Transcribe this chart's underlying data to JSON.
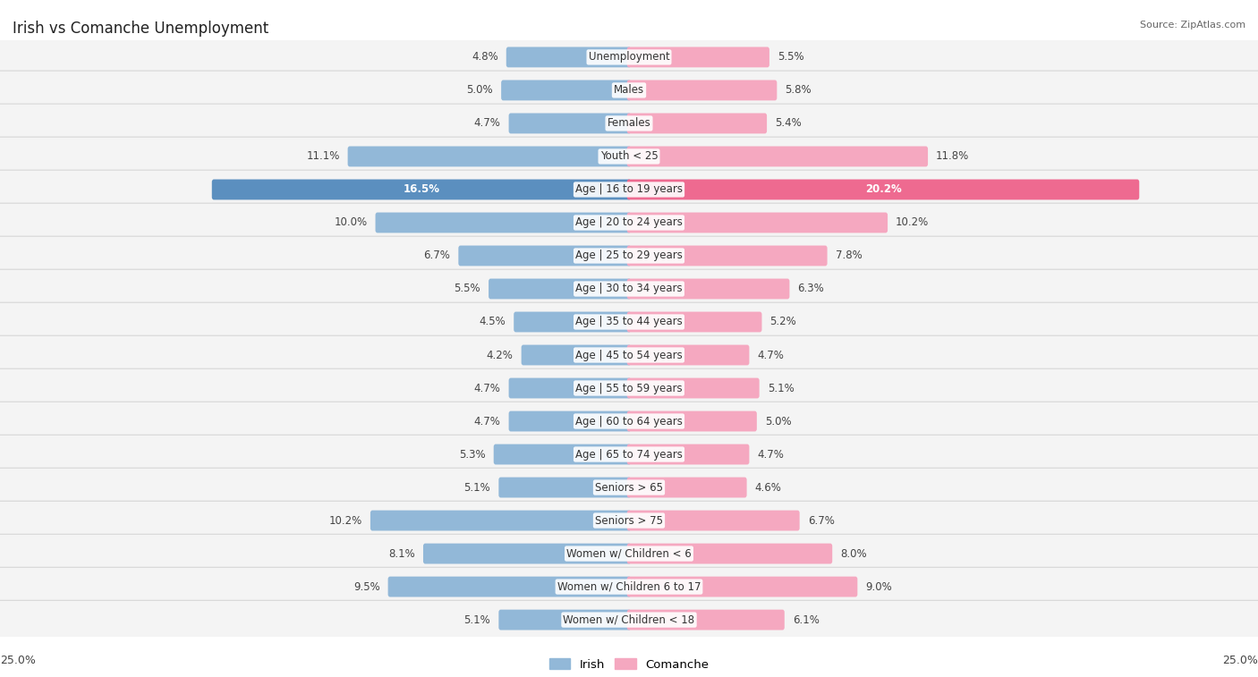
{
  "title": "Irish vs Comanche Unemployment",
  "source": "Source: ZipAtlas.com",
  "categories": [
    "Unemployment",
    "Males",
    "Females",
    "Youth < 25",
    "Age | 16 to 19 years",
    "Age | 20 to 24 years",
    "Age | 25 to 29 years",
    "Age | 30 to 34 years",
    "Age | 35 to 44 years",
    "Age | 45 to 54 years",
    "Age | 55 to 59 years",
    "Age | 60 to 64 years",
    "Age | 65 to 74 years",
    "Seniors > 65",
    "Seniors > 75",
    "Women w/ Children < 6",
    "Women w/ Children 6 to 17",
    "Women w/ Children < 18"
  ],
  "irish": [
    4.8,
    5.0,
    4.7,
    11.1,
    16.5,
    10.0,
    6.7,
    5.5,
    4.5,
    4.2,
    4.7,
    4.7,
    5.3,
    5.1,
    10.2,
    8.1,
    9.5,
    5.1
  ],
  "comanche": [
    5.5,
    5.8,
    5.4,
    11.8,
    20.2,
    10.2,
    7.8,
    6.3,
    5.2,
    4.7,
    5.1,
    5.0,
    4.7,
    4.6,
    6.7,
    8.0,
    9.0,
    6.1
  ],
  "max_val": 25.0,
  "irish_color": "#92b8d8",
  "comanche_color": "#f5a8c0",
  "irish_highlight": "#5b8fbf",
  "comanche_highlight": "#ee6a90",
  "row_bg_even": "#f2f2f2",
  "row_bg_odd": "#e8e8e8",
  "label_fontsize": 8.5,
  "value_fontsize": 8.5,
  "title_fontsize": 12
}
